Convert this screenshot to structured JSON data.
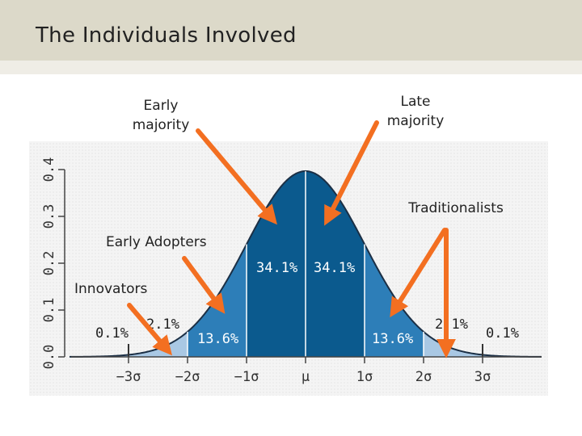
{
  "title": "The Individuals Involved",
  "labels": {
    "early_majority": [
      "Early",
      "majority"
    ],
    "late_majority": [
      "Late",
      "majority"
    ],
    "traditionalists": "Traditionalists",
    "early_adopters": "Early Adopters",
    "innovators": "Innovators"
  },
  "chart_data": {
    "type": "area",
    "xlabel": "",
    "ylabel": "",
    "y_ticks": [
      "0.0",
      "0.1",
      "0.2",
      "0.3",
      "0.4"
    ],
    "ylim": [
      0,
      0.4
    ],
    "x_ticks": [
      "−3σ",
      "−2σ",
      "−1σ",
      "μ",
      "1σ",
      "2σ",
      "3σ"
    ],
    "xlim": [
      -4,
      4
    ],
    "percentages": {
      "left_tail": "0.1%",
      "left_2": "2.1%",
      "left_13": "13.6%",
      "left_34": "34.1%",
      "right_34": "34.1%",
      "right_13": "13.6%",
      "right_2": "2.1%",
      "right_tail": "0.1%"
    },
    "colors": {
      "tail": "#a9c8e4",
      "band_2": "#6fa6d1",
      "band_1": "#2d7eb8",
      "center": "#0b5a8e",
      "arrow": "#f36f21"
    }
  }
}
